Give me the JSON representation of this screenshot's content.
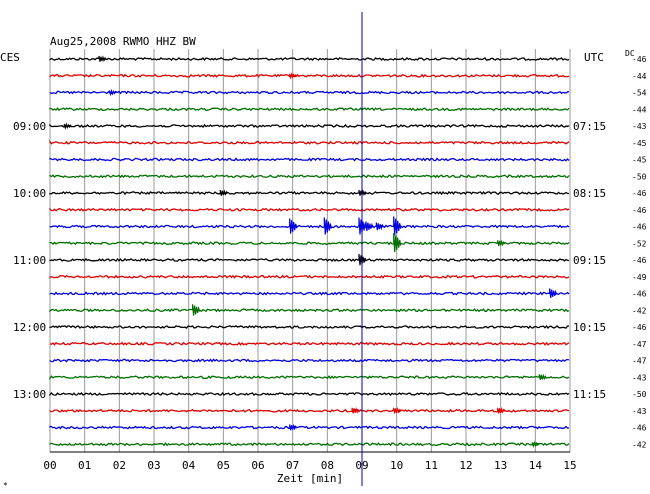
{
  "chart_data": {
    "type": "line",
    "title": "Aug25,2008   RWMO HHZ BW",
    "xlabel": "Zeit [min]",
    "ylabel": "",
    "left_header": "CES",
    "right_header": "UTC",
    "dc_header": "DC",
    "x_range": [
      0,
      15
    ],
    "x_ticks": [
      "00",
      "01",
      "02",
      "03",
      "04",
      "05",
      "06",
      "07",
      "08",
      "09",
      "10",
      "11",
      "12",
      "13",
      "14",
      "15"
    ],
    "grid": true,
    "trace_colors": [
      "#000000",
      "#e00000",
      "#0000e0",
      "#007000"
    ],
    "marker_minute": 9.0,
    "marker_color": "#0000c0",
    "left_time_labels": [
      {
        "row": 4,
        "text": "09:00"
      },
      {
        "row": 8,
        "text": "10:00"
      },
      {
        "row": 12,
        "text": "11:00"
      },
      {
        "row": 16,
        "text": "12:00"
      },
      {
        "row": 20,
        "text": "13:00"
      }
    ],
    "right_time_labels": [
      {
        "row": 4,
        "text": "07:15"
      },
      {
        "row": 8,
        "text": "08:15"
      },
      {
        "row": 12,
        "text": "09:15"
      },
      {
        "row": 16,
        "text": "10:15"
      },
      {
        "row": 20,
        "text": "11:15"
      }
    ],
    "dc_offsets": [
      "-46",
      "-44",
      "-54",
      "-44",
      "-43",
      "-45",
      "-45",
      "-50",
      "-46",
      "-46",
      "-46",
      "-52",
      "-46",
      "-49",
      "-46",
      "-42",
      "-46",
      "-47",
      "-47",
      "-43",
      "-50",
      "-43",
      "-46",
      "-42"
    ],
    "events": [
      {
        "row": 0,
        "minute": 1.5,
        "amp": 3
      },
      {
        "row": 1,
        "minute": 7.0,
        "amp": 2
      },
      {
        "row": 2,
        "minute": 1.8,
        "amp": 2
      },
      {
        "row": 4,
        "minute": 0.5,
        "amp": 2
      },
      {
        "row": 8,
        "minute": 5.0,
        "amp": 3
      },
      {
        "row": 8,
        "minute": 9.0,
        "amp": 3
      },
      {
        "row": 10,
        "minute": 7.0,
        "amp": 8
      },
      {
        "row": 10,
        "minute": 8.0,
        "amp": 9
      },
      {
        "row": 10,
        "minute": 9.0,
        "amp": 9
      },
      {
        "row": 10,
        "minute": 9.2,
        "amp": 5
      },
      {
        "row": 10,
        "minute": 9.5,
        "amp": 4
      },
      {
        "row": 10,
        "minute": 10.0,
        "amp": 10
      },
      {
        "row": 11,
        "minute": 10.0,
        "amp": 10
      },
      {
        "row": 11,
        "minute": 13.0,
        "amp": 3
      },
      {
        "row": 12,
        "minute": 9.0,
        "amp": 6
      },
      {
        "row": 14,
        "minute": 14.5,
        "amp": 5
      },
      {
        "row": 15,
        "minute": 4.2,
        "amp": 6
      },
      {
        "row": 19,
        "minute": 14.2,
        "amp": 3
      },
      {
        "row": 21,
        "minute": 8.8,
        "amp": 3
      },
      {
        "row": 21,
        "minute": 10.0,
        "amp": 3
      },
      {
        "row": 21,
        "minute": 13.0,
        "amp": 3
      },
      {
        "row": 22,
        "minute": 7.0,
        "amp": 3
      },
      {
        "row": 23,
        "minute": 14.0,
        "amp": 2
      }
    ]
  }
}
